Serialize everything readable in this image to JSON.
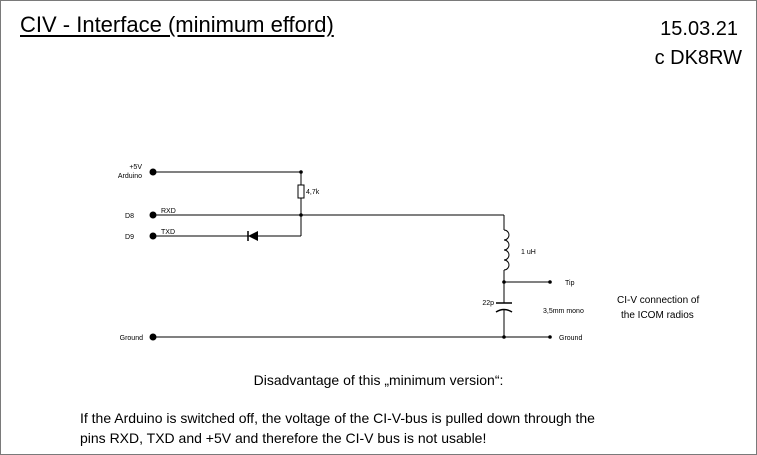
{
  "header": {
    "title": "CIV - Interface (minimum efford)",
    "date": "15.03.21",
    "author": "c DK8RW"
  },
  "schematic": {
    "pins_left": {
      "plus5v_line1": "+5V",
      "plus5v_line2": "Arduino",
      "d8": "D8",
      "d9": "D9",
      "ground": "Ground"
    },
    "signals": {
      "rxd": "RXD",
      "txd": "TXD"
    },
    "components": {
      "resistor": "4,7k",
      "inductor": "1 uH",
      "capacitor": "22p"
    },
    "right_terminals": {
      "tip": "Tip",
      "ground": "Ground",
      "jack": "3,5mm mono"
    },
    "connection_note": {
      "line1": "CI-V connection of",
      "line2": "the  ICOM radios"
    }
  },
  "note": {
    "heading": "Disadvantage of this „minimum version“:",
    "body_line1": "If the Arduino is switched off, the voltage of the CI-V-bus is pulled down through the",
    "body_line2": "pins RXD, TXD and +5V and therefore the CI-V bus is not usable!"
  }
}
